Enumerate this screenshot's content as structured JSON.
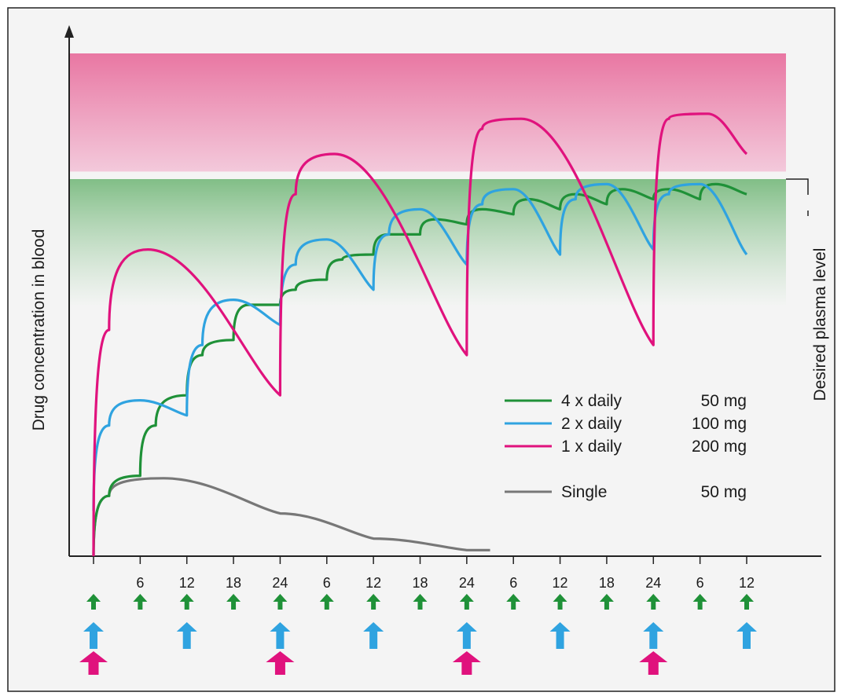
{
  "chart_data": {
    "type": "line",
    "ylabel": "Drug concentration in blood",
    "x_ticks": [
      "6",
      "12",
      "18",
      "24",
      "6",
      "12",
      "18",
      "24",
      "6",
      "12",
      "18",
      "24",
      "6",
      "12"
    ],
    "x_ticks_hours": [
      6,
      12,
      18,
      24,
      30,
      36,
      42,
      48,
      54,
      60,
      66,
      72,
      78,
      84
    ],
    "x_range_hours": [
      0,
      84
    ],
    "zones": [
      {
        "label": "",
        "color": "#e8709e",
        "y_range": [
          0.765,
          1.0
        ]
      },
      {
        "label": "Desired plasma level",
        "color": "#74b87a",
        "y_range": [
          0.5,
          0.75
        ]
      }
    ],
    "legend": [
      {
        "series": "4 x daily",
        "dose": "50 mg",
        "color": "#1f9138"
      },
      {
        "series": "2 x daily",
        "dose": "100 mg",
        "color": "#2fa3e0"
      },
      {
        "series": "1 x daily",
        "dose": "200 mg",
        "color": "#e0127d"
      },
      {
        "series": "Single",
        "dose": "50 mg",
        "color": "#777777"
      }
    ],
    "series": [
      {
        "name": "4 x daily",
        "color": "#1f9138",
        "x": [
          0,
          2,
          6,
          8,
          12,
          14,
          18,
          20,
          24,
          26,
          30,
          32,
          36,
          38,
          42,
          44,
          48,
          50,
          54,
          56,
          60,
          62,
          66,
          68,
          72,
          74,
          78,
          80,
          84
        ],
        "y": [
          0,
          0.12,
          0.16,
          0.26,
          0.32,
          0.4,
          0.43,
          0.5,
          0.5,
          0.53,
          0.55,
          0.59,
          0.6,
          0.64,
          0.64,
          0.67,
          0.66,
          0.69,
          0.68,
          0.71,
          0.69,
          0.72,
          0.7,
          0.73,
          0.71,
          0.73,
          0.71,
          0.74,
          0.72
        ]
      },
      {
        "name": "2 x daily",
        "color": "#2fa3e0",
        "x": [
          0,
          2,
          6,
          12,
          14,
          18,
          24,
          26,
          30,
          36,
          38,
          42,
          48,
          50,
          54,
          60,
          62,
          66,
          72,
          74,
          78,
          84
        ],
        "y": [
          0.09,
          0.26,
          0.31,
          0.28,
          0.42,
          0.51,
          0.46,
          0.58,
          0.63,
          0.53,
          0.64,
          0.69,
          0.58,
          0.7,
          0.73,
          0.6,
          0.71,
          0.74,
          0.61,
          0.72,
          0.74,
          0.6
        ]
      },
      {
        "name": "1 x daily",
        "color": "#e0127d",
        "x": [
          0,
          2,
          7,
          24,
          26,
          31,
          48,
          50,
          55,
          72,
          74,
          79,
          84
        ],
        "y": [
          0,
          0.45,
          0.61,
          0.32,
          0.72,
          0.8,
          0.4,
          0.85,
          0.87,
          0.42,
          0.87,
          0.88,
          0.8
        ]
      },
      {
        "name": "Single",
        "color": "#777777",
        "x": [
          0,
          2,
          9,
          24,
          36,
          48,
          51
        ],
        "y": [
          0,
          0.12,
          0.155,
          0.085,
          0.035,
          0.012,
          0.012
        ]
      }
    ],
    "dosing_arrows": [
      {
        "series": "4 x daily",
        "color": "#1f9138",
        "hours": [
          0,
          6,
          12,
          18,
          24,
          30,
          36,
          42,
          48,
          54,
          60,
          66,
          72,
          78,
          84
        ]
      },
      {
        "series": "2 x daily",
        "color": "#2fa3e0",
        "hours": [
          0,
          12,
          24,
          36,
          48,
          60,
          72,
          84
        ]
      },
      {
        "series": "1 x daily",
        "color": "#e0127d",
        "hours": [
          0,
          24,
          48,
          72
        ]
      }
    ],
    "grid": false
  }
}
